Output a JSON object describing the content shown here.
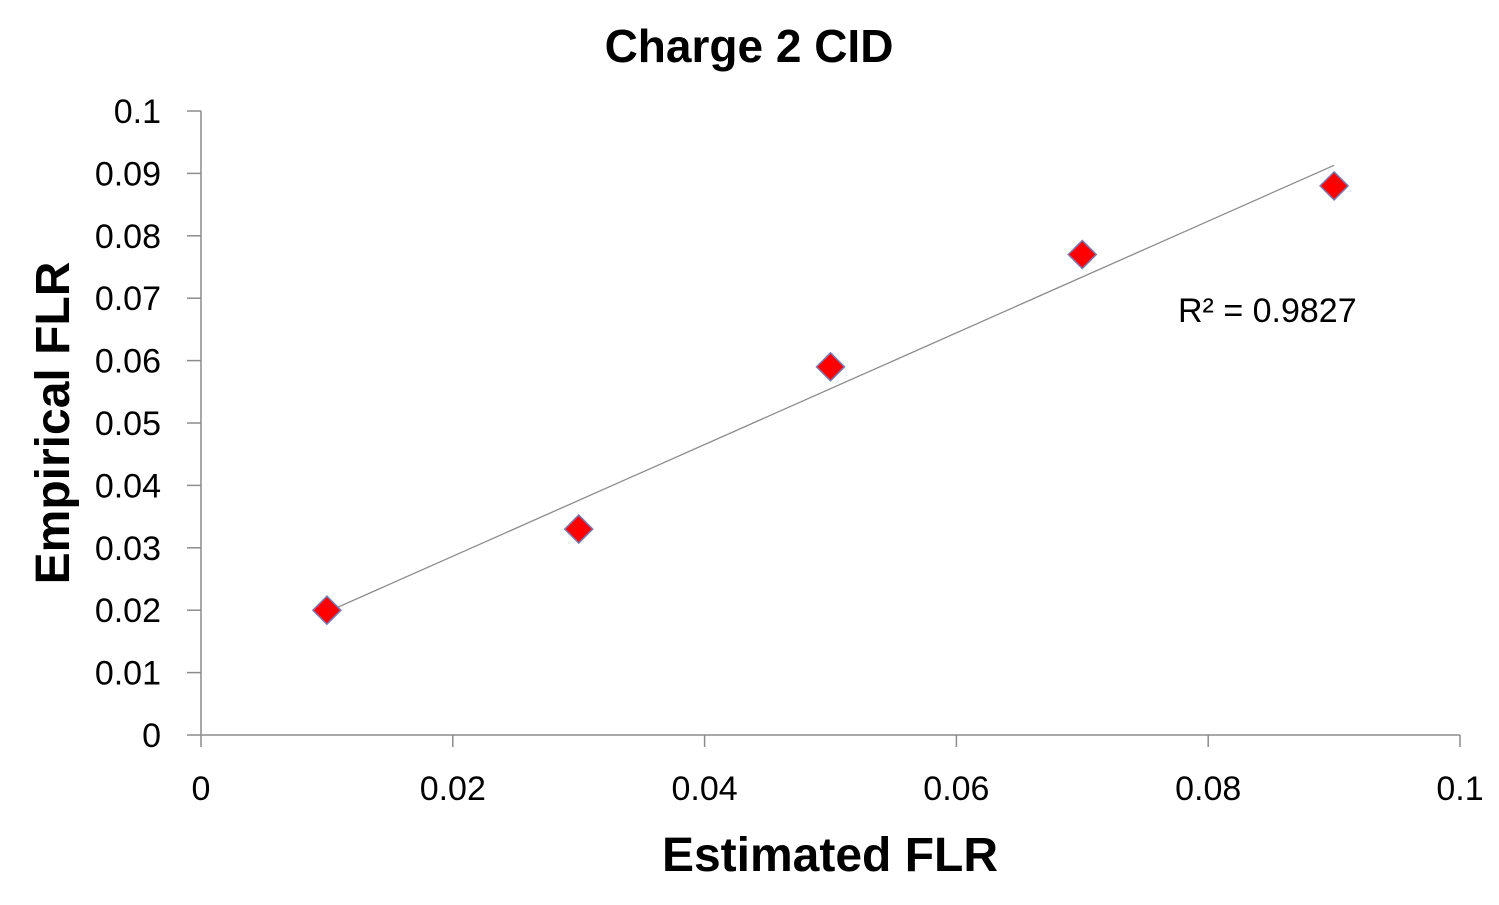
{
  "chart_data": {
    "type": "scatter",
    "title": "Charge 2 CID",
    "xlabel": "Estimated FLR",
    "ylabel": "Empirical FLR",
    "xlim": [
      0,
      0.1
    ],
    "ylim": [
      0,
      0.1
    ],
    "x_ticks": [
      "0",
      "0.02",
      "0.04",
      "0.06",
      "0.08",
      "0.1"
    ],
    "y_ticks": [
      "0",
      "0.01",
      "0.02",
      "0.03",
      "0.04",
      "0.05",
      "0.06",
      "0.07",
      "0.08",
      "0.09",
      "0.1"
    ],
    "series": [
      {
        "marker": "diamond",
        "color": "#ff0000",
        "edge_color": "#7a7ab0",
        "points": [
          {
            "x": 0.01,
            "y": 0.02
          },
          {
            "x": 0.03,
            "y": 0.033
          },
          {
            "x": 0.05,
            "y": 0.059
          },
          {
            "x": 0.07,
            "y": 0.077
          },
          {
            "x": 0.09,
            "y": 0.088
          }
        ]
      }
    ],
    "trendline": {
      "type": "linear",
      "color": "#8c8c8c",
      "x_range": [
        0.01,
        0.09
      ],
      "y_range": [
        0.0197,
        0.0913
      ],
      "r_squared_label": "R² = 0.9827"
    },
    "grid": false,
    "legend": "none"
  }
}
